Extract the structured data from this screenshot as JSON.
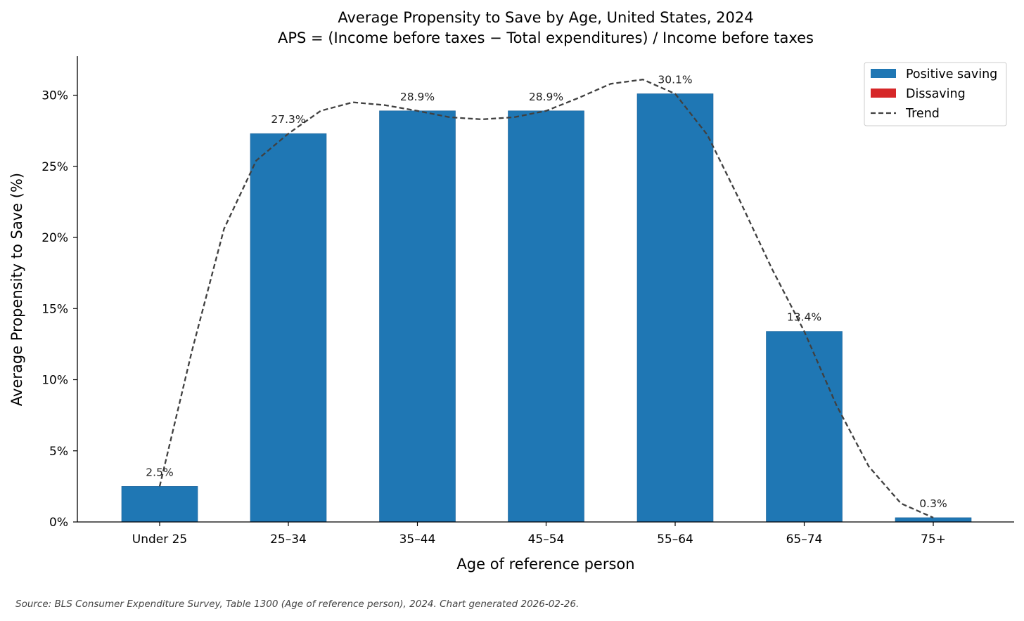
{
  "chart_data": {
    "type": "bar",
    "title": "Average Propensity to Save by Age, United States, 2024",
    "subtitle": "APS = (Income before taxes − Total expenditures) / Income before taxes",
    "xlabel": "Age of reference person",
    "ylabel": "Average Propensity to Save (%)",
    "categories": [
      "Under 25",
      "25–34",
      "35–44",
      "45–54",
      "55–64",
      "65–74",
      "75+"
    ],
    "values": [
      2.5,
      27.3,
      28.9,
      28.9,
      30.1,
      13.4,
      0.3
    ],
    "data_labels": [
      "2.5%",
      "27.3%",
      "28.9%",
      "28.9%",
      "30.1%",
      "13.4%",
      "0.3%"
    ],
    "ylim": [
      0,
      32.7
    ],
    "yticks": [
      0,
      5,
      10,
      15,
      20,
      25,
      30
    ],
    "ytick_labels": [
      "0%",
      "5%",
      "10%",
      "15%",
      "20%",
      "25%",
      "30%"
    ],
    "trend": {
      "name": "Trend",
      "style": "dashed",
      "x": [
        0,
        0.25,
        0.5,
        0.75,
        1,
        1.25,
        1.5,
        1.75,
        2,
        2.25,
        2.5,
        2.75,
        3,
        3.25,
        3.5,
        3.75,
        4,
        4.25,
        4.5,
        4.75,
        5,
        5.25,
        5.5,
        5.75,
        6
      ],
      "y": [
        2.5,
        12.0,
        20.6,
        25.4,
        27.3,
        28.9,
        29.5,
        29.3,
        28.9,
        28.45,
        28.3,
        28.45,
        28.9,
        29.8,
        30.8,
        31.1,
        30.1,
        27.2,
        22.6,
        17.8,
        13.4,
        8.2,
        3.9,
        1.3,
        0.3
      ]
    },
    "legend": {
      "position": "top-right",
      "entries": [
        {
          "label": "Positive saving",
          "kind": "patch",
          "color": "#1f77b4"
        },
        {
          "label": "Dissaving",
          "kind": "patch",
          "color": "#d62728"
        },
        {
          "label": "Trend",
          "kind": "dashed-line",
          "color": "#404040"
        }
      ]
    },
    "grid": false,
    "colors": {
      "positive": "#1f77b4",
      "negative": "#d62728",
      "trend": "#404040",
      "axis": "#000000",
      "label": "#222222"
    }
  },
  "source_note": "Source: BLS Consumer Expenditure Survey, Table 1300 (Age of reference person), 2024.  Chart generated 2026-02-26."
}
